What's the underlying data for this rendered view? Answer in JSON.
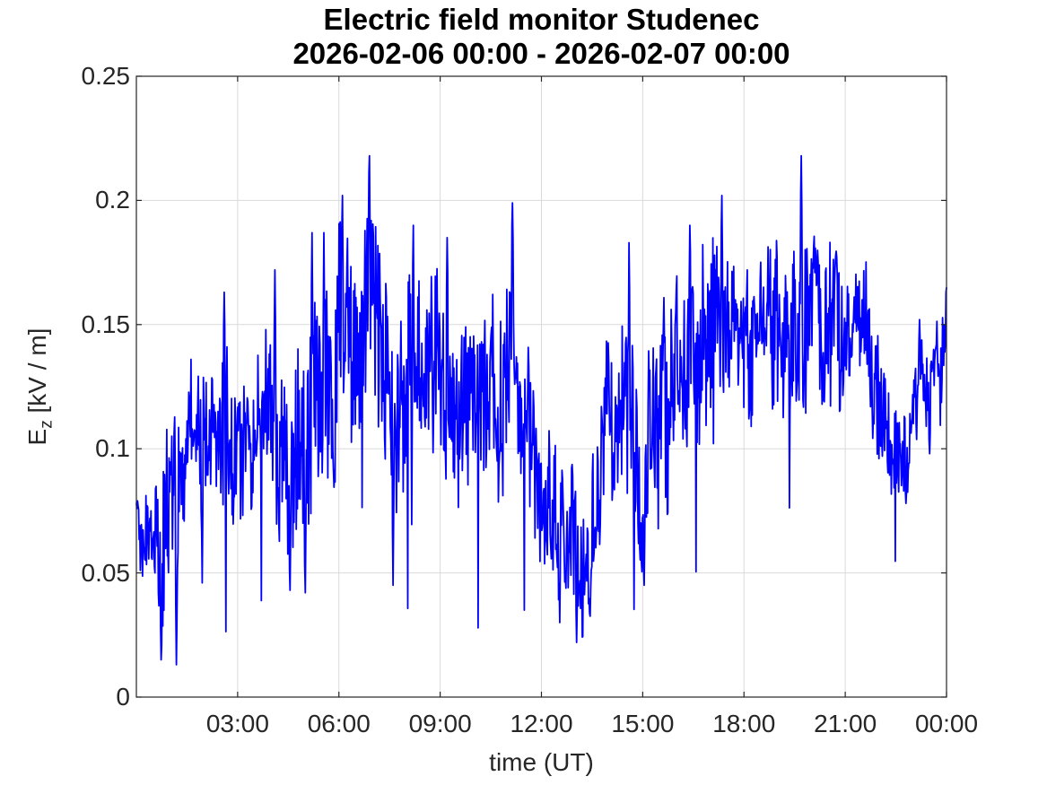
{
  "window": {
    "background": "#ffffff"
  },
  "labels": {
    "ylabel_main": "E",
    "ylabel_sub": "z",
    "ylabel_rest": " [kV / m]"
  },
  "chart_data": {
    "type": "line",
    "title": "Electric field monitor Studenec",
    "subtitle": "2026-02-06 00:00 - 2026-02-07 00:00",
    "xlabel": "time (UT)",
    "ylabel": "E_z [kV / m]",
    "x_unit": "hours UT",
    "xlim_hours": [
      0,
      24
    ],
    "ylim": [
      0,
      0.25
    ],
    "x_ticks": {
      "hours": [
        3,
        6,
        9,
        12,
        15,
        18,
        21,
        24
      ],
      "labels": [
        "03:00",
        "06:00",
        "09:00",
        "12:00",
        "15:00",
        "18:00",
        "21:00",
        "00:00"
      ]
    },
    "y_ticks": {
      "values": [
        0,
        0.05,
        0.1,
        0.15,
        0.2,
        0.25
      ],
      "labels": [
        "0",
        "0.05",
        "0.1",
        "0.15",
        "0.2",
        "0.25"
      ]
    },
    "grid": true,
    "legend": "none",
    "line_color": "#0000ff",
    "axis_color": "#262626",
    "grid_color": "#d9d9d9",
    "text_color": "#262626",
    "title_color": "#000000",
    "line_width": 1.8,
    "series": [
      {
        "name": "Ez",
        "description": "Vertical electric field, 24 h of high-frequency noisy data; envelope of estimated mid values and half-amplitudes per time (hours UT), plus notable extreme points read from the plot.",
        "envelope": {
          "t": [
            0.0,
            0.4,
            0.75,
            1.1,
            1.5,
            2.0,
            2.5,
            3.0,
            3.5,
            4.0,
            4.5,
            5.0,
            5.5,
            6.0,
            6.5,
            6.9,
            7.5,
            8.0,
            8.5,
            9.0,
            9.5,
            10.0,
            10.5,
            11.0,
            11.3,
            11.7,
            12.0,
            12.5,
            13.0,
            13.3,
            13.7,
            14.0,
            14.5,
            15.0,
            15.3,
            15.7,
            16.0,
            16.5,
            17.0,
            17.4,
            17.8,
            18.3,
            18.8,
            19.3,
            19.7,
            20.0,
            20.5,
            21.0,
            21.5,
            22.0,
            22.4,
            22.8,
            23.2,
            23.5,
            23.8,
            24.0
          ],
          "mid": [
            0.068,
            0.065,
            0.062,
            0.085,
            0.108,
            0.1,
            0.112,
            0.095,
            0.105,
            0.118,
            0.092,
            0.115,
            0.128,
            0.14,
            0.13,
            0.148,
            0.125,
            0.122,
            0.13,
            0.122,
            0.115,
            0.12,
            0.123,
            0.132,
            0.11,
            0.1,
            0.082,
            0.065,
            0.058,
            0.055,
            0.085,
            0.105,
            0.122,
            0.095,
            0.115,
            0.125,
            0.128,
            0.132,
            0.14,
            0.155,
            0.145,
            0.148,
            0.14,
            0.15,
            0.165,
            0.15,
            0.148,
            0.142,
            0.148,
            0.122,
            0.1,
            0.092,
            0.128,
            0.118,
            0.128,
            0.152
          ],
          "amp": [
            0.016,
            0.022,
            0.045,
            0.042,
            0.028,
            0.03,
            0.042,
            0.035,
            0.03,
            0.04,
            0.042,
            0.048,
            0.05,
            0.052,
            0.05,
            0.058,
            0.05,
            0.05,
            0.045,
            0.048,
            0.04,
            0.04,
            0.048,
            0.052,
            0.04,
            0.038,
            0.03,
            0.033,
            0.036,
            0.028,
            0.038,
            0.045,
            0.05,
            0.045,
            0.048,
            0.05,
            0.042,
            0.048,
            0.04,
            0.04,
            0.042,
            0.038,
            0.038,
            0.04,
            0.048,
            0.04,
            0.038,
            0.04,
            0.035,
            0.03,
            0.022,
            0.02,
            0.025,
            0.022,
            0.026,
            0.012
          ]
        },
        "key_points": [
          [
            0.03,
            0.079
          ],
          [
            0.74,
            0.015
          ],
          [
            1.18,
            0.013
          ],
          [
            1.95,
            0.046
          ],
          [
            2.6,
            0.163
          ],
          [
            4.1,
            0.172
          ],
          [
            4.55,
            0.043
          ],
          [
            5.0,
            0.042
          ],
          [
            5.2,
            0.187
          ],
          [
            5.55,
            0.187
          ],
          [
            6.1,
            0.202
          ],
          [
            6.9,
            0.218
          ],
          [
            7.6,
            0.045
          ],
          [
            8.2,
            0.19
          ],
          [
            9.2,
            0.185
          ],
          [
            11.14,
            0.199
          ],
          [
            12.55,
            0.03
          ],
          [
            13.05,
            0.022
          ],
          [
            14.6,
            0.183
          ],
          [
            15.05,
            0.045
          ],
          [
            16.4,
            0.19
          ],
          [
            17.35,
            0.202
          ],
          [
            19.7,
            0.218
          ],
          [
            22.1,
            0.097
          ],
          [
            22.8,
            0.078
          ],
          [
            23.2,
            0.152
          ],
          [
            23.5,
            0.098
          ],
          [
            24.0,
            0.165
          ]
        ],
        "noise_seed": 20260206,
        "samples": 1440
      }
    ]
  }
}
